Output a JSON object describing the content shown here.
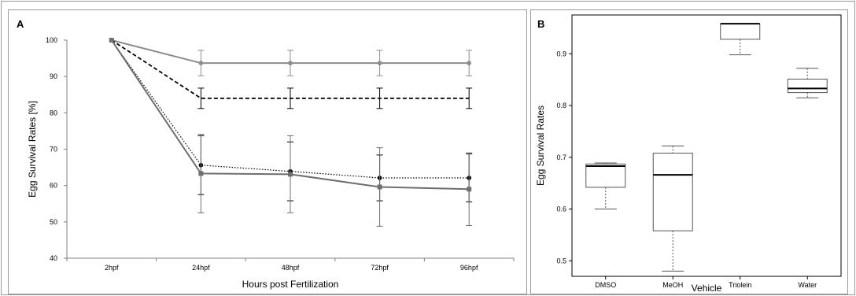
{
  "chart_data": [
    {
      "panel_label": "A",
      "type": "line",
      "xlabel": "Hours post Fertilization",
      "ylabel": "Egg Survival Rates [%]",
      "categories": [
        "2hpf",
        "24hpf",
        "48hpf",
        "72hpf",
        "96hpf"
      ],
      "ylim": [
        40,
        100
      ],
      "yticks": [
        40,
        50,
        60,
        70,
        80,
        90,
        100
      ],
      "grid": false,
      "series": [
        {
          "style": "solid-light-gray",
          "color": "#8c8c8c",
          "marker": "circle",
          "values": [
            100,
            93.7,
            93.7,
            93.7,
            93.7
          ],
          "err": [
            0,
            3.5,
            3.5,
            3.5,
            3.5
          ]
        },
        {
          "style": "dashed-black",
          "color": "#000000",
          "marker": "none",
          "values": [
            100,
            84,
            84,
            84,
            84
          ],
          "err": [
            0,
            2.8,
            2.8,
            2.8,
            2.8
          ]
        },
        {
          "style": "dotted-black",
          "color": "#000000",
          "marker": "circle",
          "values": [
            100,
            65.6,
            63.9,
            62.1,
            62.1
          ],
          "err": [
            0,
            8.1,
            8.1,
            6.3,
            6.6
          ]
        },
        {
          "style": "solid-dark-gray",
          "color": "#6e6e6e",
          "marker": "square",
          "values": [
            100,
            63.3,
            63.1,
            59.6,
            59.0
          ],
          "err": [
            0,
            10.8,
            10.6,
            10.8,
            10.0
          ]
        }
      ]
    },
    {
      "panel_label": "B",
      "type": "boxplot",
      "xlabel": "Vehicle",
      "ylabel": "Egg Survival Rates",
      "categories": [
        "DMSO",
        "MeOH",
        "Triolein",
        "Water"
      ],
      "ylim": [
        0.47,
        0.975
      ],
      "yticks": [
        "0.5",
        "0.6",
        "0.7",
        "0.8",
        "0.9"
      ],
      "boxes": [
        {
          "min": 0.6,
          "q1": 0.642,
          "median": 0.683,
          "q3": 0.687,
          "max": 0.689
        },
        {
          "min": 0.48,
          "q1": 0.558,
          "median": 0.666,
          "q3": 0.708,
          "max": 0.722
        },
        {
          "min": 0.898,
          "q1": 0.928,
          "median": 0.958,
          "q3": 0.958,
          "max": 0.958
        },
        {
          "min": 0.815,
          "q1": 0.825,
          "median": 0.833,
          "q3": 0.851,
          "max": 0.872
        }
      ]
    }
  ]
}
